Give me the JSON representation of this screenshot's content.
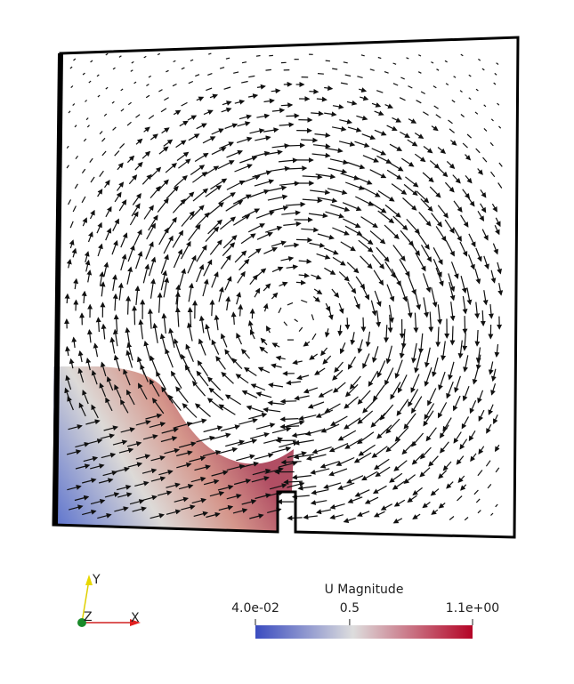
{
  "colorbar": {
    "title": "U Magnitude",
    "ticks": [
      {
        "value": 0.04,
        "label": "4.0e-02"
      },
      {
        "value": 0.5,
        "label": "0.5"
      },
      {
        "value": 1.1,
        "label": "1.1e+00"
      }
    ]
  },
  "orientation_axes": {
    "y": "Y",
    "z": "Z",
    "x": "X"
  }
}
